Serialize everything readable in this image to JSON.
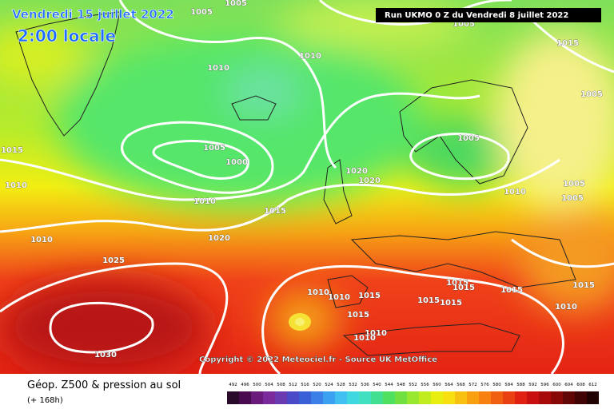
{
  "header": {
    "date": "Vendredi 15 juillet 2022",
    "time": "2:00 locale",
    "run": "Run UKMO 0 Z du Vendredi 8 juillet 2022"
  },
  "copyright": "Copyright © 2022 Meteociel.fr - Source UK MetOffice",
  "footer": {
    "title": "Géop. Z500 & pression au sol",
    "subtitle": "(+ 168h)"
  },
  "scale": [
    "492",
    "496",
    "500",
    "504",
    "508",
    "512",
    "516",
    "520",
    "524",
    "528",
    "532",
    "536",
    "540",
    "544",
    "548",
    "552",
    "556",
    "560",
    "564",
    "568",
    "572",
    "576",
    "580",
    "584",
    "588",
    "592",
    "596",
    "600",
    "604",
    "608",
    "612"
  ],
  "isobar_labels": [
    "1005",
    "1005",
    "1005",
    "1010",
    "1010",
    "1015",
    "1005",
    "1015",
    "1005",
    "1000",
    "1005",
    "1020",
    "1020",
    "1010",
    "1010",
    "1015",
    "1010",
    "1005",
    "1005",
    "1010",
    "1020",
    "1025",
    "1015",
    "1015",
    "1015",
    "1015",
    "1010",
    "1010",
    "1015",
    "1015",
    "1015",
    "1010",
    "1015",
    "1010",
    "1010",
    "1030"
  ]
}
